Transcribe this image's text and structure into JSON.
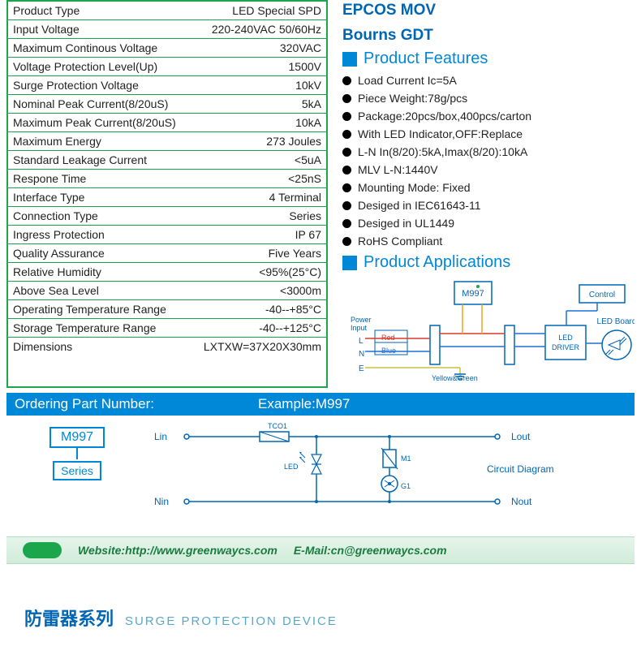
{
  "specs": [
    {
      "label": "Product Type",
      "value": "LED Special SPD"
    },
    {
      "label": "Input  Voltage",
      "value": "220-240VAC 50/60Hz"
    },
    {
      "label": "Maximum Continous Voltage",
      "value": "320VAC"
    },
    {
      "label": "Voltage Protection Level(Up)",
      "value": "1500V"
    },
    {
      "label": "Surge Protection Voltage",
      "value": "10kV"
    },
    {
      "label": "Nominal Peak Current(8/20uS)",
      "value": "5kA"
    },
    {
      "label": "Maximum Peak Current(8/20uS)",
      "value": "10kA"
    },
    {
      "label": "Maximum Energy",
      "value": "273 Joules"
    },
    {
      "label": "Standard Leakage Current",
      "value": "<5uA"
    },
    {
      "label": "Respone Time",
      "value": "<25nS"
    },
    {
      "label": "Interface Type",
      "value": "4 Terminal"
    },
    {
      "label": "Connection Type",
      "value": "Series"
    },
    {
      "label": "Ingress Protection",
      "value": "IP 67"
    },
    {
      "label": "Quality Assurance",
      "value": "Five Years"
    },
    {
      "label": "Relative Humidity",
      "value": "<95%(25°C)"
    },
    {
      "label": "Above Sea Level",
      "value": "<3000m"
    },
    {
      "label": "Operating Temperature Range",
      "value": "-40--+85°C"
    },
    {
      "label": "Storage Temperature Range",
      "value": "-40--+125°C"
    },
    {
      "label": "Dimensions",
      "value": "LXTXW=37X20X30mm"
    }
  ],
  "brand": {
    "line1": "EPCOS MOV",
    "line2": "Bourns GDT"
  },
  "features_title": "Product Features",
  "features": [
    "Load Current Ic=5A",
    "Piece Weight:78g/pcs",
    "Package:20pcs/box,400pcs/carton",
    "With LED Indicator,OFF:Replace",
    "L-N In(8/20):5kA,Imax(8/20):10kA",
    "MLV L-N:1440V",
    "Mounting Mode: Fixed",
    "Desiged in IEC61643-11",
    "Desiged in UL1449",
    "RoHS Compliant"
  ],
  "applications_title": "Product Applications",
  "ordering": {
    "label": "Ordering Part Number:",
    "example": "Example:M997"
  },
  "part": {
    "code": "M997",
    "series": "Series"
  },
  "app_diagram": {
    "power_label": "Power\nInput",
    "m997": "M997",
    "control": "Control",
    "driver": "LED\nDRIVER",
    "board": "LED Board",
    "l": "L",
    "n": "N",
    "e": "E",
    "red": "Red",
    "blue": "Blue",
    "yg": "Yellow&Green",
    "colors": {
      "red": "#d93a2b",
      "blue": "#1f6fd8",
      "orange": "#f5a11a",
      "yg": "#cbbf3f",
      "wire": "#1f6fd8",
      "box": "#0066b3"
    }
  },
  "circuit": {
    "lin": "Lin",
    "lout": "Lout",
    "nin": "Nin",
    "nout": "Nout",
    "tco1": "TCO1",
    "led": "LED",
    "m1": "M1",
    "g1": "G1",
    "title": "Circuit Diagram"
  },
  "footer": {
    "website": "Website:http://www.greenwaycs.com",
    "email": "E-Mail:cn@greenwaycs.com"
  },
  "bottom": {
    "ch": "防雷器系列",
    "en": "SURGE PROTECTION DEVICE"
  },
  "colors": {
    "green": "#1ca64c",
    "blue_brand": "#0066b3",
    "blue_header": "#0088d8",
    "footer_text": "#1b7a3e"
  }
}
